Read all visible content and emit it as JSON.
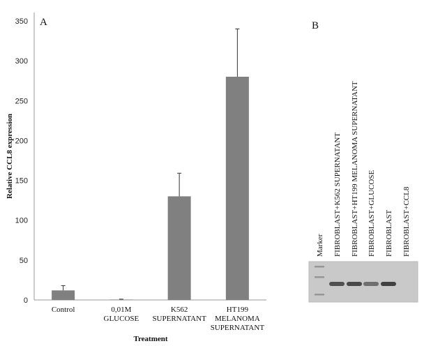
{
  "chart_data": [
    {
      "type": "bar",
      "panel_label": "A",
      "categories": [
        [
          "Control"
        ],
        [
          "0,01M",
          "GLUCOSE"
        ],
        [
          "K562",
          "SUPERNATANT"
        ],
        [
          "HT199",
          "MELANOMA",
          "SUPERNATANT"
        ]
      ],
      "values": [
        12,
        0.5,
        130,
        280
      ],
      "error_upper": [
        18,
        1,
        159,
        340
      ],
      "xlabel": "Treatment",
      "ylabel": "Relative CCL8 expression",
      "ylim": [
        0,
        350
      ],
      "yticks": [
        0,
        50,
        100,
        150,
        200,
        250,
        300,
        350
      ],
      "grid": false,
      "bar_color": "#808080"
    },
    {
      "type": "gel",
      "panel_label": "B",
      "lanes": [
        "Marker",
        "FIBROBLAST+K562 SUPERNATANT",
        "FIBROBLAST+HT199 MELANOMA SUPERNATANT",
        "FIBROBLAST+GLUCOSE",
        "FIBROBLAST",
        "FIBROBLAST+CCL8"
      ],
      "band_intensity": [
        null,
        0.8,
        0.85,
        0.6,
        0.9,
        0
      ]
    }
  ]
}
